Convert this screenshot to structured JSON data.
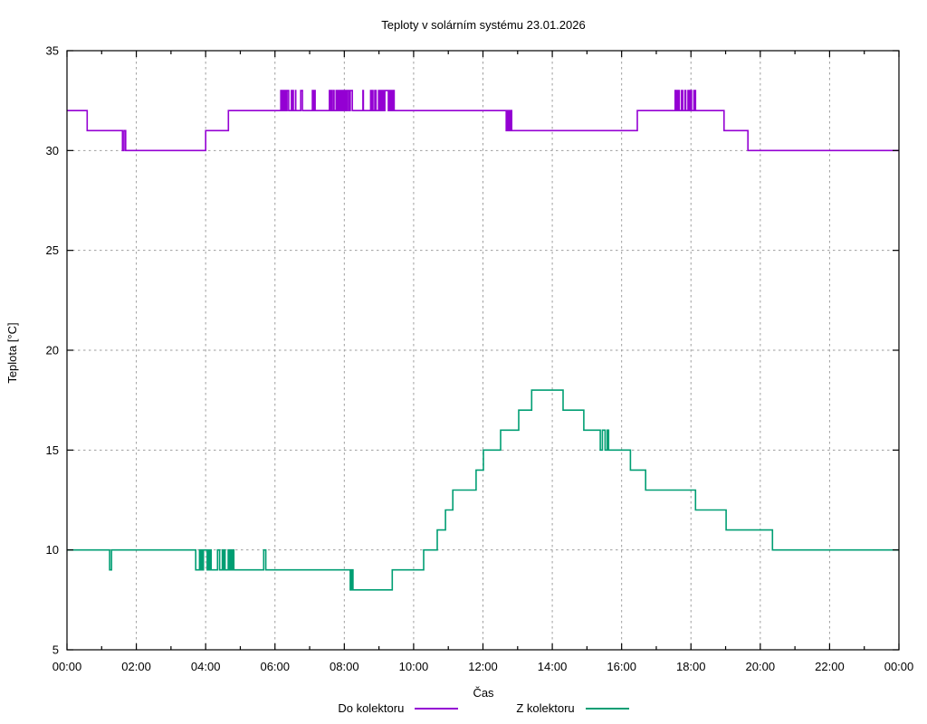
{
  "window": {
    "background": "#ffffff"
  },
  "chart_data": {
    "type": "line",
    "title": "Teploty v solárním systému 23.01.2026",
    "xlabel": "Čas",
    "ylabel": "Teplota [°C]",
    "x_unit": "hours",
    "x_range": [
      0,
      24
    ],
    "ylim": [
      5,
      35
    ],
    "x_tick_hours": [
      0,
      2,
      4,
      6,
      8,
      10,
      12,
      14,
      16,
      18,
      20,
      22,
      24
    ],
    "x_tick_labels": [
      "00:00",
      "02:00",
      "04:00",
      "06:00",
      "08:00",
      "10:00",
      "12:00",
      "14:00",
      "16:00",
      "18:00",
      "20:00",
      "22:00",
      "00:00"
    ],
    "x_minor_tick_hours": [
      1,
      3,
      5,
      7,
      9,
      11,
      13,
      15,
      17,
      19,
      21,
      23
    ],
    "y_ticks": [
      5,
      10,
      15,
      20,
      25,
      30,
      35
    ],
    "grid": true,
    "grid_color": "#9e9e9e",
    "axis_color": "#000000",
    "legend_position": "bottom-center",
    "series": [
      {
        "name": "Do kolektoru",
        "color": "#9400d3",
        "style": "steps",
        "points": [
          [
            0,
            32
          ],
          [
            0.58,
            31
          ],
          [
            1.6,
            30
          ],
          [
            1.64,
            31
          ],
          [
            1.69,
            30
          ],
          [
            4.0,
            31
          ],
          [
            4.65,
            32
          ],
          [
            12.7,
            31
          ],
          [
            16.45,
            32
          ],
          [
            18.95,
            31
          ],
          [
            19.64,
            30
          ],
          [
            24,
            30
          ]
        ],
        "noise_bursts": [
          {
            "start": 6.11,
            "end": 6.6,
            "lo": 32,
            "hi": 33
          },
          {
            "start": 6.73,
            "end": 6.79,
            "lo": 32,
            "hi": 33
          },
          {
            "start": 7.05,
            "end": 7.3,
            "lo": 32,
            "hi": 33
          },
          {
            "start": 7.55,
            "end": 8.3,
            "lo": 32,
            "hi": 33
          },
          {
            "start": 8.5,
            "end": 8.56,
            "lo": 32,
            "hi": 33
          },
          {
            "start": 8.75,
            "end": 9.45,
            "lo": 32,
            "hi": 33
          },
          {
            "start": 12.66,
            "end": 12.84,
            "lo": 31,
            "hi": 32
          },
          {
            "start": 17.52,
            "end": 18.13,
            "lo": 32,
            "hi": 33
          }
        ]
      },
      {
        "name": "Z kolektoru",
        "color": "#009e73",
        "style": "steps",
        "points": [
          [
            0,
            10
          ],
          [
            1.23,
            9
          ],
          [
            1.28,
            10
          ],
          [
            4.81,
            9
          ],
          [
            5.67,
            10
          ],
          [
            5.73,
            9
          ],
          [
            8.17,
            8
          ],
          [
            8.21,
            9
          ],
          [
            8.25,
            8
          ],
          [
            9.38,
            9
          ],
          [
            10.29,
            10
          ],
          [
            10.68,
            11
          ],
          [
            10.92,
            12
          ],
          [
            11.13,
            13
          ],
          [
            11.8,
            14
          ],
          [
            12.01,
            15
          ],
          [
            12.51,
            16
          ],
          [
            13.03,
            17
          ],
          [
            13.4,
            18
          ],
          [
            14.31,
            17
          ],
          [
            14.91,
            16
          ],
          [
            15.38,
            15
          ],
          [
            15.44,
            16
          ],
          [
            15.52,
            15
          ],
          [
            15.58,
            16
          ],
          [
            15.62,
            15
          ],
          [
            16.25,
            14
          ],
          [
            16.69,
            13
          ],
          [
            18.13,
            12
          ],
          [
            19.01,
            11
          ],
          [
            20.35,
            10
          ],
          [
            24,
            10
          ]
        ],
        "noise_bursts": [
          {
            "start": 3.68,
            "end": 4.81,
            "lo": 9,
            "hi": 10
          }
        ]
      }
    ]
  }
}
